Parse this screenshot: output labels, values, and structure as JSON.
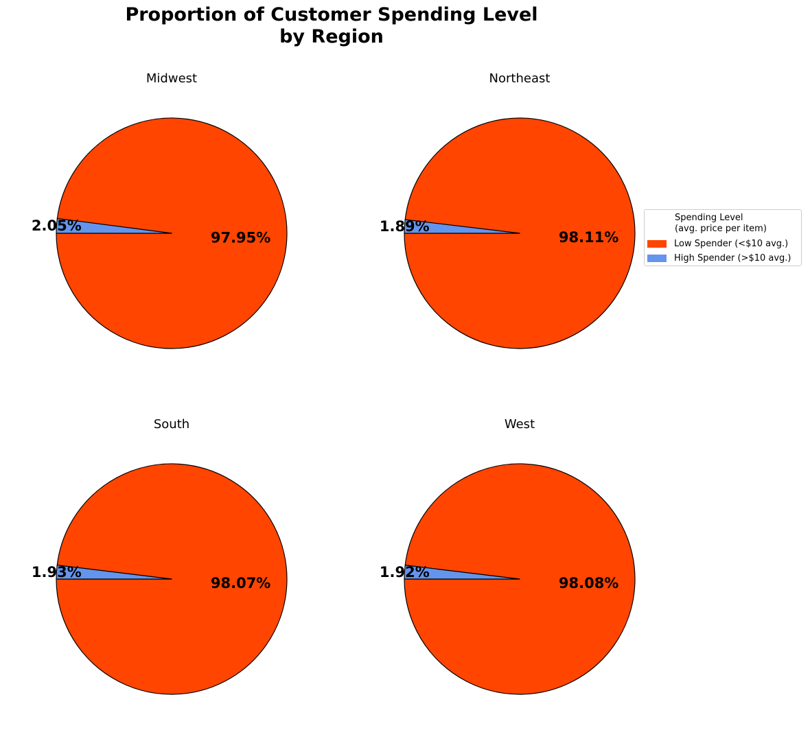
{
  "title_lines": [
    "Proportion of Customer Spending Level",
    "by Region"
  ],
  "legend": {
    "title_lines": [
      "Spending Level",
      "(avg. price per item)"
    ],
    "placement": "right, middle of top row",
    "items": [
      {
        "label": "Low Spender (<$10 avg.)",
        "color": "#FF4500"
      },
      {
        "label": "High Spender (>$10 avg.)",
        "color": "#6495ED"
      }
    ]
  },
  "chart_data": [
    {
      "type": "pie",
      "title": "Midwest",
      "categories": [
        "Low Spender (<$10 avg.)",
        "High Spender (>$10 avg.)"
      ],
      "values": [
        97.95,
        2.05
      ],
      "value_labels": [
        "97.95%",
        "2.05%"
      ],
      "colors": [
        "#FF4500",
        "#6495ED"
      ]
    },
    {
      "type": "pie",
      "title": "Northeast",
      "categories": [
        "Low Spender (<$10 avg.)",
        "High Spender (>$10 avg.)"
      ],
      "values": [
        98.11,
        1.89
      ],
      "value_labels": [
        "98.11%",
        "1.89%"
      ],
      "colors": [
        "#FF4500",
        "#6495ED"
      ]
    },
    {
      "type": "pie",
      "title": "South",
      "categories": [
        "Low Spender (<$10 avg.)",
        "High Spender (>$10 avg.)"
      ],
      "values": [
        98.07,
        1.93
      ],
      "value_labels": [
        "98.07%",
        "1.93%"
      ],
      "colors": [
        "#FF4500",
        "#6495ED"
      ]
    },
    {
      "type": "pie",
      "title": "West",
      "categories": [
        "Low Spender (<$10 avg.)",
        "High Spender (>$10 avg.)"
      ],
      "values": [
        98.08,
        1.92
      ],
      "value_labels": [
        "98.08%",
        "1.92%"
      ],
      "colors": [
        "#FF4500",
        "#6495ED"
      ]
    }
  ]
}
